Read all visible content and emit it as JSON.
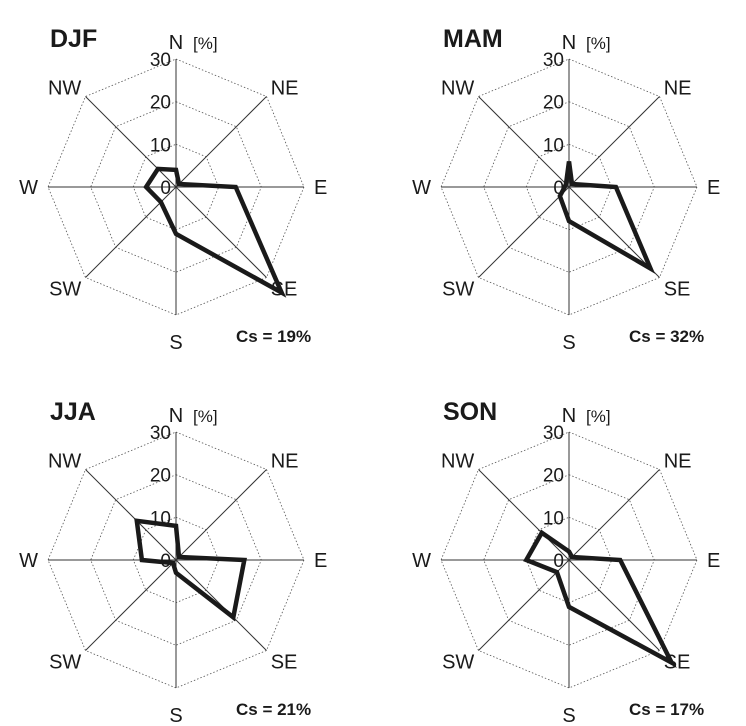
{
  "chart_data": [
    {
      "type": "radar",
      "title": "DJF",
      "unit": "[%]",
      "directions": [
        "N",
        "NE",
        "E",
        "SE",
        "S",
        "SW",
        "W",
        "NW"
      ],
      "r_ticks": [
        "0",
        "10",
        "20",
        "30"
      ],
      "rlim": [
        0,
        30
      ],
      "grid": true,
      "values": [
        4,
        1,
        14,
        35,
        11,
        5,
        7,
        6
      ],
      "cs_label": "Cs = 19%"
    },
    {
      "type": "radar",
      "title": "MAM",
      "unit": "[%]",
      "directions": [
        "N",
        "NE",
        "E",
        "SE",
        "S",
        "SW",
        "W",
        "NW"
      ],
      "r_ticks": [
        "0",
        "10",
        "20",
        "30"
      ],
      "rlim": [
        0,
        30
      ],
      "grid": true,
      "values": [
        6,
        1,
        11,
        27,
        8,
        3,
        1,
        1
      ],
      "cs_label": "Cs = 32%"
    },
    {
      "type": "radar",
      "title": "JJA",
      "unit": "[%]",
      "directions": [
        "N",
        "NE",
        "E",
        "SE",
        "S",
        "SW",
        "W",
        "NW"
      ],
      "r_ticks": [
        "0",
        "10",
        "20",
        "30"
      ],
      "rlim": [
        0,
        30
      ],
      "grid": true,
      "values": [
        8,
        1,
        16,
        19,
        3,
        1,
        8,
        13
      ],
      "cs_label": "Cs = 21%"
    },
    {
      "type": "radar",
      "title": "SON",
      "unit": "[%]",
      "directions": [
        "N",
        "NE",
        "E",
        "SE",
        "S",
        "SW",
        "W",
        "NW"
      ],
      "r_ticks": [
        "0",
        "10",
        "20",
        "30"
      ],
      "rlim": [
        0,
        30
      ],
      "grid": true,
      "values": [
        2,
        1,
        12,
        34,
        11,
        4,
        10,
        9
      ],
      "cs_label": "Cs = 17%"
    }
  ]
}
